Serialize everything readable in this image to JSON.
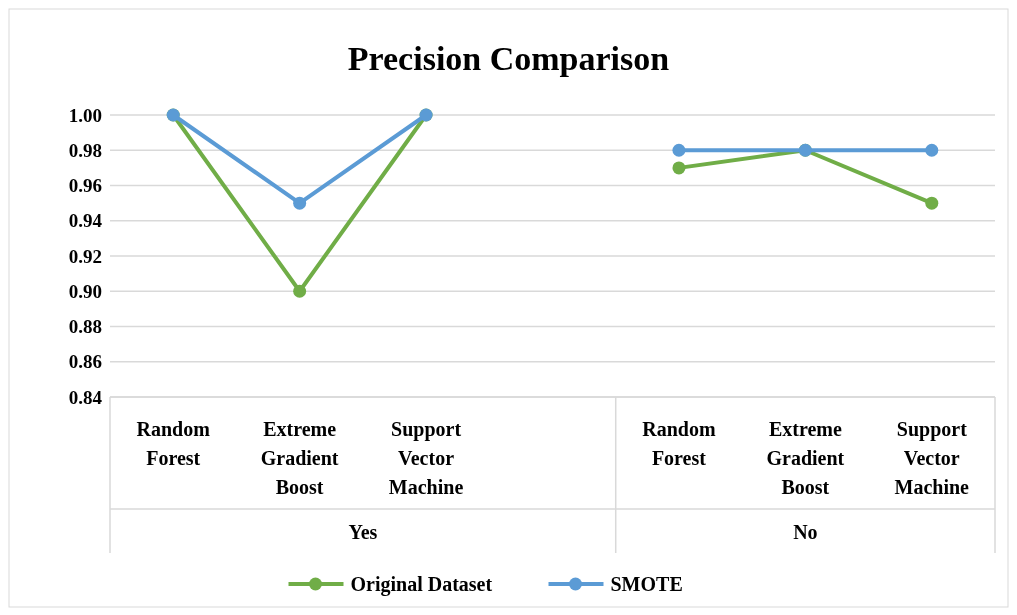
{
  "chart_data": {
    "type": "line",
    "title": "Precision Comparison",
    "categories": [
      "Random Forest",
      "Extreme Gradient Boost",
      "Support Vector Machine",
      null,
      "Random Forest",
      "Extreme Gradient Boost",
      "Support Vector Machine"
    ],
    "series": [
      {
        "name": "Original Dataset",
        "color": "#70ad47",
        "values": [
          1.0,
          0.9,
          1.0,
          null,
          0.97,
          0.98,
          0.95
        ]
      },
      {
        "name": "SMOTE",
        "color": "#5b9bd5",
        "values": [
          1.0,
          0.95,
          1.0,
          null,
          0.98,
          0.98,
          0.98
        ]
      }
    ],
    "annotations": [
      "Yes",
      "No"
    ],
    "ylim": [
      0.84,
      1.0
    ],
    "yticks": [
      {
        "value": 0.84,
        "label": "0.84"
      },
      {
        "value": 0.86,
        "label": "0.86"
      },
      {
        "value": 0.88,
        "label": "0.88"
      },
      {
        "value": 0.9,
        "label": "0.90"
      },
      {
        "value": 0.92,
        "label": "0.92"
      },
      {
        "value": 0.94,
        "label": "0.94"
      },
      {
        "value": 0.96,
        "label": "0.96"
      },
      {
        "value": 0.98,
        "label": "0.98"
      },
      {
        "value": 1.0,
        "label": "1.00"
      }
    ],
    "grid": "y",
    "legend": "bottom",
    "marker": "circle",
    "line_style": "solid"
  }
}
